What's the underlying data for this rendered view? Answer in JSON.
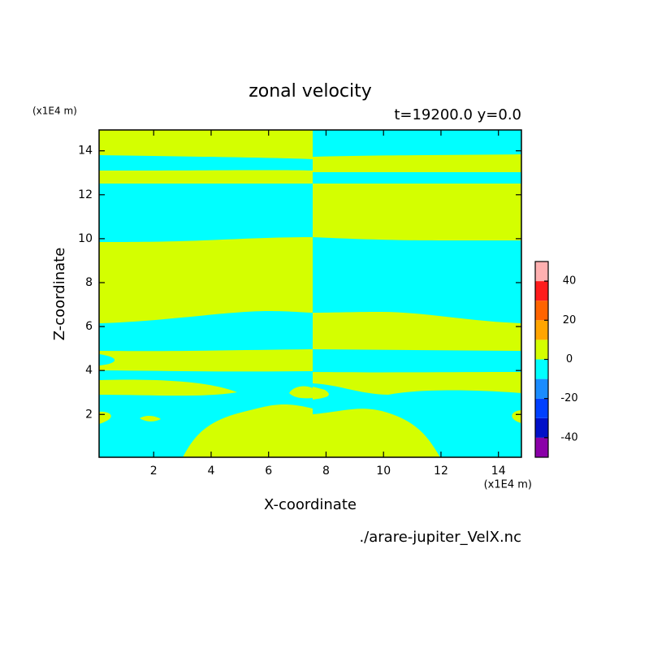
{
  "chart_data": {
    "type": "contour",
    "title": "zonal velocity",
    "subtitle": "t=19200.0 y=0.0",
    "x_label": "X-coordinate",
    "y_label": "Z-coordinate",
    "x_unit": "(x1E4 m)",
    "y_unit": "(x1E4 m)",
    "source": "./arare-jupiter_VelX.nc",
    "xlim": [
      0.1,
      14.8
    ],
    "ylim": [
      0.05,
      14.95
    ],
    "xticks": [
      2,
      4,
      6,
      8,
      10,
      12,
      14
    ],
    "yticks": [
      2,
      4,
      6,
      8,
      10,
      12,
      14
    ],
    "colorbar": {
      "levels": [
        -50,
        -40,
        -30,
        -20,
        -10,
        0,
        10,
        20,
        30,
        40,
        50
      ],
      "colors": [
        "#8a00a8",
        "#0010c8",
        "#0040ff",
        "#1a8cff",
        "#00ffff",
        "#d4ff00",
        "#ffa500",
        "#ff6400",
        "#ff1c1c",
        "#ffb0b0"
      ],
      "ticks": [
        -40,
        -20,
        0,
        20,
        40
      ]
    }
  }
}
